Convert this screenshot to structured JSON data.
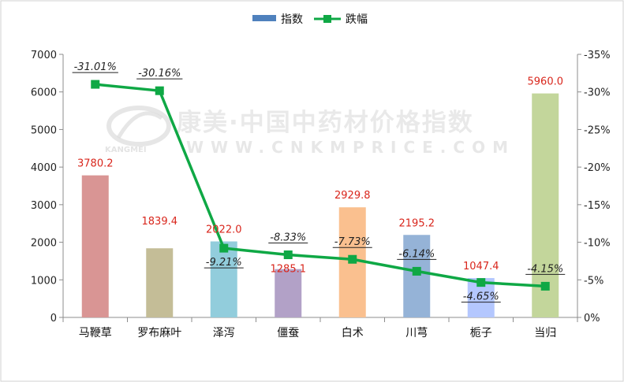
{
  "chart_data": {
    "type": "bar",
    "categories": [
      "马鞭草",
      "罗布麻叶",
      "泽泻",
      "僵蚕",
      "白术",
      "川芎",
      "栀子",
      "当归"
    ],
    "series": [
      {
        "name": "指数",
        "type": "bar",
        "axis": "left",
        "values": [
          3780.2,
          1839.4,
          2022.0,
          1285.1,
          2929.8,
          2195.2,
          1047.4,
          5960.0
        ],
        "value_labels": [
          "3780.2",
          "1839.4",
          "2022.0",
          "1285.1",
          "2929.8",
          "2195.2",
          "1047.4",
          "5960.0"
        ],
        "colors": [
          "#d99594",
          "#c4bd97",
          "#92cddc",
          "#b2a1c7",
          "#fac08f",
          "#95b3d7",
          "#b4c7fe",
          "#c3d69b"
        ],
        "legend_color": "#4f81bd"
      },
      {
        "name": "跌幅",
        "type": "line",
        "axis": "right",
        "values": [
          -31.01,
          -30.16,
          -9.21,
          -8.33,
          -7.73,
          -6.14,
          -4.65,
          -4.15
        ],
        "value_labels": [
          "-31.01%",
          "-30.16%",
          "-9.21%",
          "-8.33%",
          "-7.73%",
          "-6.14%",
          "-4.65%",
          "-4.15%"
        ],
        "color": "#0fa845"
      }
    ],
    "left_axis": {
      "ylim": [
        0,
        7000
      ],
      "ticks": [
        0,
        1000,
        2000,
        3000,
        4000,
        5000,
        6000,
        7000
      ],
      "tick_labels": [
        "0",
        "1000",
        "2000",
        "3000",
        "4000",
        "5000",
        "6000",
        "7000"
      ]
    },
    "right_axis": {
      "ylim": [
        0,
        -35
      ],
      "ticks": [
        0,
        -5,
        -10,
        -15,
        -20,
        -25,
        -30,
        -35
      ],
      "tick_labels": [
        "0%",
        "-5%",
        "-10%",
        "-15%",
        "-20%",
        "-25%",
        "-30%",
        "-35%"
      ]
    },
    "legend": {
      "position": "top"
    },
    "grid": false
  },
  "watermark": {
    "main_text": "康美·中国中药材价格指数",
    "url_text": "WWW.CNKMPRICE.COM",
    "brand_text": "KANGMEI"
  }
}
